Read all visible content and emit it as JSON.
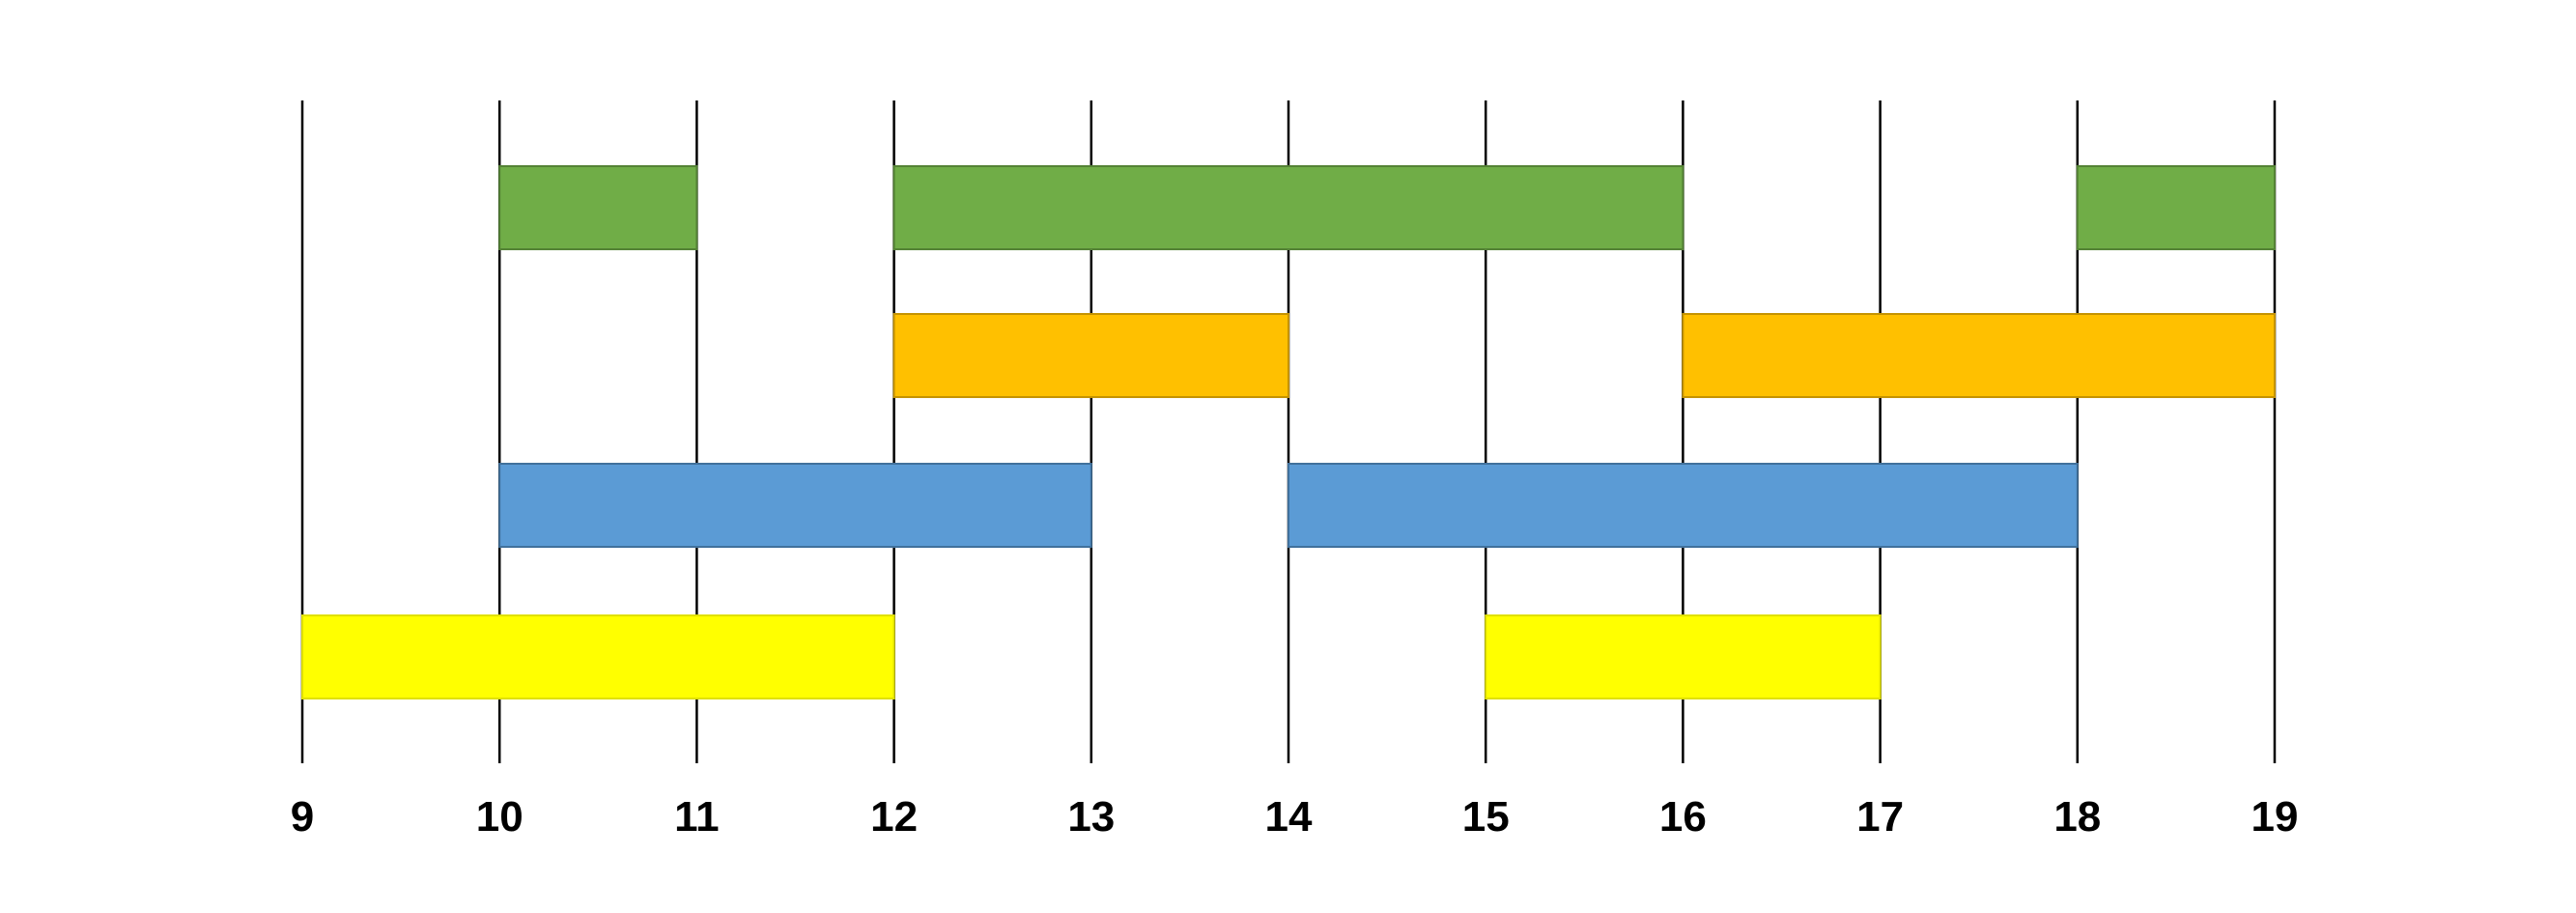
{
  "chart_data": {
    "type": "bar",
    "orientation": "horizontal-intervals",
    "title": "",
    "xlabel": "",
    "ylabel": "",
    "xlim": [
      9,
      19
    ],
    "x_ticks": [
      9,
      10,
      11,
      12,
      13,
      14,
      15,
      16,
      17,
      18,
      19
    ],
    "tick_labels": [
      "9",
      "10",
      "11",
      "12",
      "13",
      "14",
      "15",
      "16",
      "17",
      "18",
      "19"
    ],
    "grid": true,
    "legend": "none",
    "rows": [
      {
        "color": "#70ad47",
        "stroke": "#548235",
        "intervals": [
          [
            10,
            11
          ],
          [
            12,
            16
          ],
          [
            18,
            19
          ]
        ]
      },
      {
        "color": "#ffc000",
        "stroke": "#c59300",
        "intervals": [
          [
            12,
            14
          ],
          [
            16,
            19
          ]
        ]
      },
      {
        "color": "#5b9bd5",
        "stroke": "#41719c",
        "intervals": [
          [
            10,
            13
          ],
          [
            14,
            18
          ]
        ]
      },
      {
        "color": "#ffff00",
        "stroke": "#e0e000",
        "intervals": [
          [
            9,
            12
          ],
          [
            15,
            17
          ]
        ]
      }
    ]
  }
}
